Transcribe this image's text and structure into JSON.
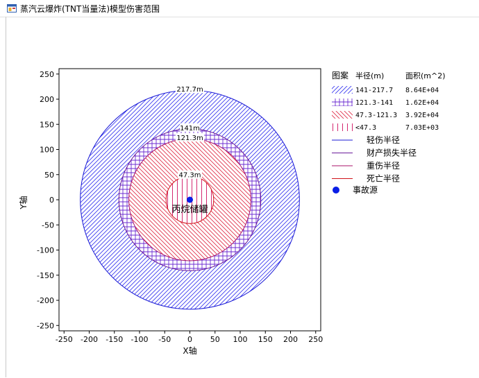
{
  "window": {
    "title": "蒸汽云爆炸(TNT当量法)模型伤害范围"
  },
  "icons": {
    "app": "app-window-icon"
  },
  "chart_data": {
    "type": "scatter",
    "title": "",
    "xlabel": "X轴",
    "ylabel": "Y轴",
    "xlim": [
      -260,
      260
    ],
    "ylim": [
      -260,
      260
    ],
    "xticks": [
      -250,
      -200,
      -150,
      -100,
      -50,
      0,
      50,
      100,
      150,
      200,
      250
    ],
    "yticks": [
      -250,
      -200,
      -150,
      -100,
      -50,
      0,
      50,
      100,
      150,
      200,
      250
    ],
    "grid": false,
    "legend_position": "right",
    "circles": [
      {
        "name": "轻伤半径",
        "radius": 217.7,
        "label": "217.7m",
        "color": "#1a1ad6",
        "hatch": "diagonal-up"
      },
      {
        "name": "财产损失半径",
        "radius": 141,
        "label": "141m",
        "color": "#6a1a9a",
        "hatch": "grid"
      },
      {
        "name": "重伤半径",
        "radius": 121.3,
        "label": "121.3m",
        "color": "#a8106a",
        "hatch": "diagonal-down"
      },
      {
        "name": "死亡半径",
        "radius": 47.3,
        "label": "47.3m",
        "color": "#d01018",
        "hatch": "vertical"
      }
    ],
    "source": {
      "name": "事故源",
      "x": 0,
      "y": 0,
      "label": "丙烷储罐",
      "color": "#0a1ee6"
    },
    "legend": {
      "header": [
        "图案",
        "半径(m)",
        "面积(m^2)"
      ],
      "areas": [
        {
          "range": "141-217.7",
          "area": "8.64E+04",
          "color": "#3a3af0",
          "hatch": "diagonal-up"
        },
        {
          "range": "121.3-141",
          "area": "1.62E+04",
          "color": "#6a2ad0",
          "hatch": "grid"
        },
        {
          "range": "47.3-121.3",
          "area": "3.92E+04",
          "color": "#e0304a",
          "hatch": "diagonal-down"
        },
        {
          "range": "<47.3",
          "area": "7.03E+03",
          "color": "#d01060",
          "hatch": "vertical"
        }
      ],
      "lines": [
        {
          "name": "轻伤半径",
          "color": "#1a1ad6"
        },
        {
          "name": "财产损失半径",
          "color": "#6a1a9a"
        },
        {
          "name": "重伤半径",
          "color": "#a8106a"
        },
        {
          "name": "死亡半径",
          "color": "#d01018"
        }
      ],
      "marker": {
        "name": "事故源",
        "color": "#0a1ee6"
      }
    }
  }
}
